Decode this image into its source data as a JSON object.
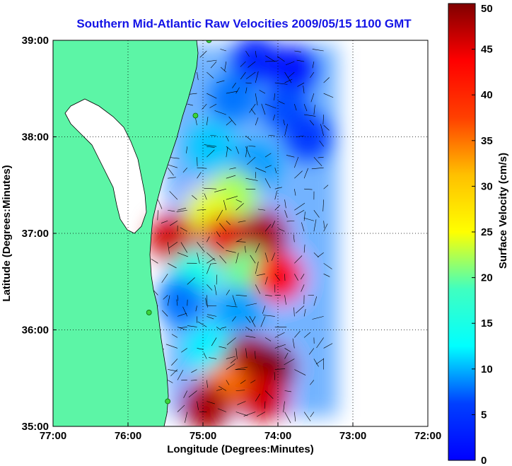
{
  "chart_data": {
    "type": "heatmap",
    "title": "Southern Mid-Atlantic Raw Velocities 2009/05/15 1100 GMT",
    "xlabel": "Longitude (Degrees:Minutes)",
    "ylabel": "Latitude (Degrees:Minutes)",
    "xlim": [
      -77,
      -72
    ],
    "ylim": [
      35,
      39
    ],
    "x_ticks": [
      {
        "value": -77,
        "label": "77:00"
      },
      {
        "value": -76,
        "label": "76:00"
      },
      {
        "value": -75,
        "label": "75:00"
      },
      {
        "value": -74,
        "label": "74:00"
      },
      {
        "value": -73,
        "label": "73:00"
      },
      {
        "value": -72,
        "label": "72:00"
      }
    ],
    "y_ticks": [
      {
        "value": 35,
        "label": "35:00"
      },
      {
        "value": 36,
        "label": "36:00"
      },
      {
        "value": 37,
        "label": "37:00"
      },
      {
        "value": 38,
        "label": "38:00"
      },
      {
        "value": 39,
        "label": "39:00"
      }
    ],
    "grid": true,
    "colorbar": {
      "label": "Surface Velocity (cm/s)",
      "range": [
        0,
        50
      ],
      "ticks": [
        0,
        5,
        10,
        15,
        20,
        25,
        30,
        35,
        40,
        45,
        50
      ],
      "colormap": "jet"
    },
    "land_color": "#5cf5a6",
    "stations": [
      {
        "lon": -74.92,
        "lat": 39.0
      },
      {
        "lon": -75.1,
        "lat": 38.22
      },
      {
        "lon": -75.72,
        "lat": 36.18
      },
      {
        "lon": -75.47,
        "lat": 35.26
      }
    ],
    "velocity_field": [
      {
        "lon": -74.3,
        "lat": 38.8,
        "speed": 8
      },
      {
        "lon": -73.8,
        "lat": 38.7,
        "speed": 7
      },
      {
        "lon": -74.6,
        "lat": 38.4,
        "speed": 12
      },
      {
        "lon": -73.9,
        "lat": 38.3,
        "speed": 10
      },
      {
        "lon": -73.6,
        "lat": 38.0,
        "speed": 9
      },
      {
        "lon": -74.9,
        "lat": 37.9,
        "speed": 16
      },
      {
        "lon": -74.3,
        "lat": 37.7,
        "speed": 14
      },
      {
        "lon": -74.6,
        "lat": 37.4,
        "speed": 27
      },
      {
        "lon": -74.9,
        "lat": 37.2,
        "speed": 30
      },
      {
        "lon": -75.4,
        "lat": 36.95,
        "speed": 46
      },
      {
        "lon": -74.7,
        "lat": 36.95,
        "speed": 45
      },
      {
        "lon": -74.2,
        "lat": 36.98,
        "speed": 48
      },
      {
        "lon": -75.1,
        "lat": 36.6,
        "speed": 20
      },
      {
        "lon": -74.4,
        "lat": 36.6,
        "speed": 24
      },
      {
        "lon": -74.0,
        "lat": 36.55,
        "speed": 44
      },
      {
        "lon": -75.3,
        "lat": 36.3,
        "speed": 12
      },
      {
        "lon": -74.5,
        "lat": 36.2,
        "speed": 14
      },
      {
        "lon": -74.9,
        "lat": 35.8,
        "speed": 18
      },
      {
        "lon": -74.4,
        "lat": 35.7,
        "speed": 48
      },
      {
        "lon": -74.1,
        "lat": 35.6,
        "speed": 50
      },
      {
        "lon": -74.7,
        "lat": 35.4,
        "speed": 38
      },
      {
        "lon": -74.2,
        "lat": 35.3,
        "speed": 46
      },
      {
        "lon": -74.95,
        "lat": 35.2,
        "speed": 48
      }
    ]
  }
}
